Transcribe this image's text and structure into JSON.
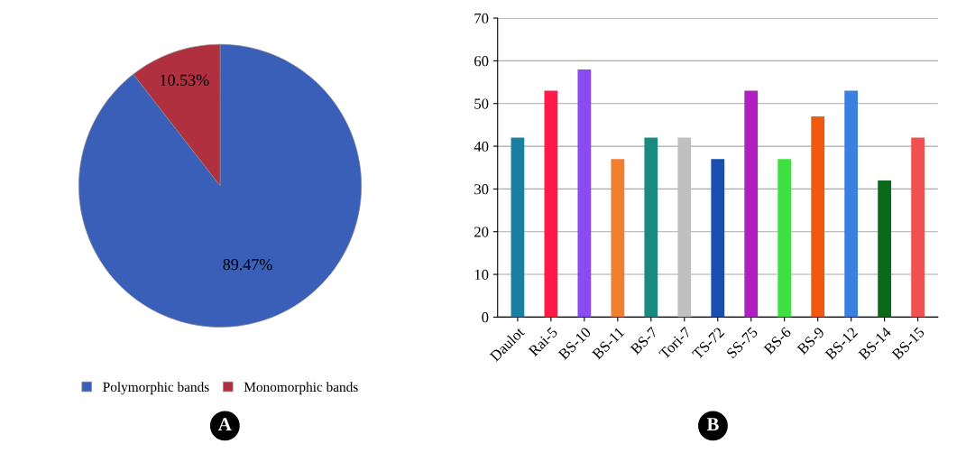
{
  "chart_data": [
    {
      "type": "pie",
      "categories": [
        "Polymorphic bands",
        "Monomorphic bands"
      ],
      "values": [
        89.47,
        10.53
      ],
      "colors": [
        "#3a5fb8",
        "#b03040"
      ],
      "value_labels": [
        "89.47%",
        "10.53%"
      ],
      "legend": "bottom",
      "annotations": [
        "A"
      ]
    },
    {
      "type": "bar",
      "categories": [
        "Daulot",
        "Rai-5",
        "BS-10",
        "BS-11",
        "BS-7",
        "Tori-7",
        "TS-72",
        "SS-75",
        "BS-6",
        "BS-9",
        "BS-12",
        "BS-14",
        "BS-15"
      ],
      "values": [
        42,
        53,
        58,
        37,
        42,
        42,
        37,
        53,
        37,
        47,
        53,
        32,
        42
      ],
      "colors": [
        "#1a7fa0",
        "#ff1a4a",
        "#8a4cf0",
        "#f07f30",
        "#1a8a80",
        "#c0c0c0",
        "#1a4fb0",
        "#b020c0",
        "#40e040",
        "#f05a10",
        "#3a80e0",
        "#0a6a1a",
        "#f05050"
      ],
      "ylim": [
        0,
        70
      ],
      "yticks": [
        0,
        10,
        20,
        30,
        40,
        50,
        60,
        70
      ],
      "grid": "y",
      "annotations": [
        "B"
      ]
    }
  ]
}
